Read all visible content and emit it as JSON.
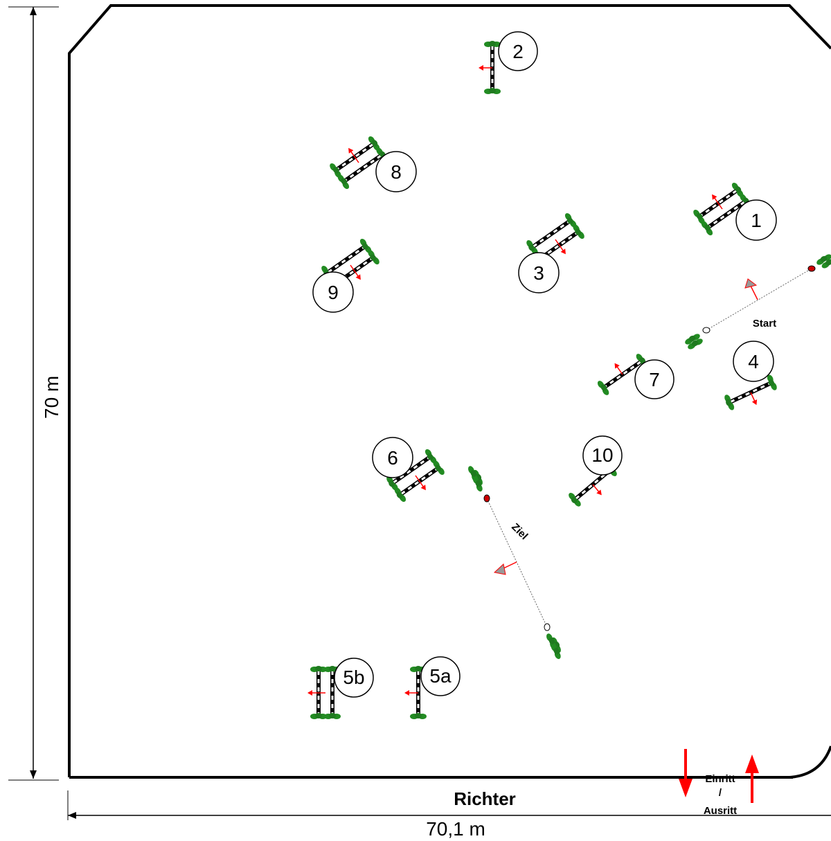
{
  "labels": {
    "dimension_height": "70 m",
    "dimension_width": "70,1 m",
    "judge": "Richter",
    "start": "Start",
    "finish": "Ziel",
    "entry_line1": "Einritt",
    "entry_line2": "/",
    "entry_line3": "Ausritt"
  },
  "obstacles": [
    {
      "id": "1",
      "label": "1",
      "type": "oxer"
    },
    {
      "id": "2",
      "label": "2",
      "type": "vertical"
    },
    {
      "id": "3",
      "label": "3",
      "type": "oxer"
    },
    {
      "id": "4",
      "label": "4",
      "type": "vertical"
    },
    {
      "id": "5a",
      "label": "5a",
      "type": "vertical"
    },
    {
      "id": "5b",
      "label": "5b",
      "type": "oxer"
    },
    {
      "id": "6",
      "label": "6",
      "type": "oxer"
    },
    {
      "id": "7",
      "label": "7",
      "type": "vertical"
    },
    {
      "id": "8",
      "label": "8",
      "type": "oxer"
    },
    {
      "id": "9",
      "label": "9",
      "type": "oxer"
    },
    {
      "id": "10",
      "label": "10",
      "type": "vertical"
    }
  ],
  "colors": {
    "boundary": "#000000",
    "flower": "#228B22",
    "arrow": "#ff0000",
    "flag": "#cc0000"
  }
}
